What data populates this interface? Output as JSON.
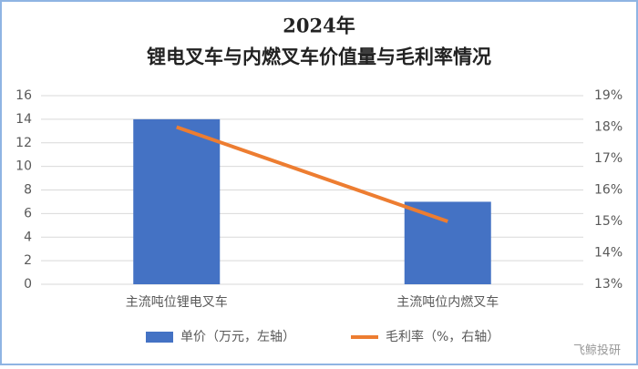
{
  "chart_data": {
    "type": "bar",
    "title": "2024年",
    "subtitle": "锂电叉车与内燃叉车价值量与毛利率情况",
    "categories": [
      "主流吨位锂电叉车",
      "主流吨位内燃叉车"
    ],
    "series": [
      {
        "name": "单价（万元，左轴）",
        "type": "bar",
        "color": "#4472c4",
        "values": [
          14,
          7
        ]
      },
      {
        "name": "毛利率（%，右轴）",
        "type": "line",
        "axis": "y2",
        "color": "#ed7d31",
        "values": [
          18,
          15
        ]
      }
    ],
    "ylim": [
      0,
      16
    ],
    "yticks": [
      0,
      2,
      4,
      6,
      8,
      10,
      12,
      14,
      16
    ],
    "y2lim": [
      13,
      19
    ],
    "y2ticks": [
      {
        "value": 13,
        "label": "13%"
      },
      {
        "value": 14,
        "label": "14%"
      },
      {
        "value": 15,
        "label": "15%"
      },
      {
        "value": 16,
        "label": "16%"
      },
      {
        "value": 17,
        "label": "17%"
      },
      {
        "value": 18,
        "label": "18%"
      },
      {
        "value": 19,
        "label": "19%"
      }
    ],
    "grid": true,
    "legend": "bottom",
    "watermark": "飞鲸投研"
  }
}
